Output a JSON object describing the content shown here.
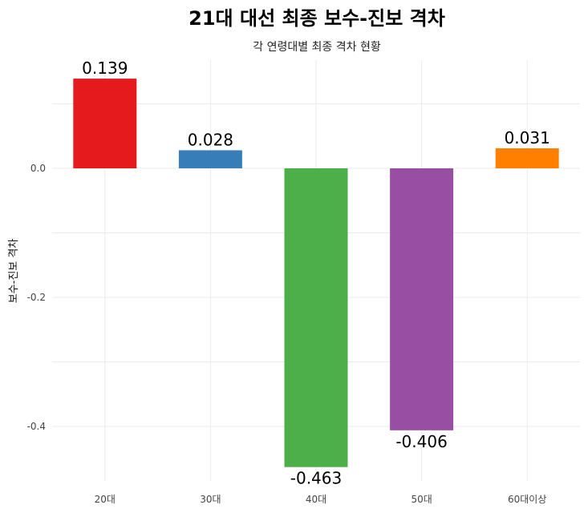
{
  "chart_data": {
    "type": "bar",
    "title": "21대 대선 최종 보수-진보 격차",
    "subtitle": "각 연령대별 최종 격차 현황",
    "xlabel": "",
    "ylabel": "보수-진보 격차",
    "categories": [
      "20대",
      "30대",
      "40대",
      "50대",
      "60대이상"
    ],
    "values": [
      0.139,
      0.028,
      -0.463,
      -0.406,
      0.031
    ],
    "value_labels": [
      "0.139",
      "0.028",
      "-0.463",
      "-0.406",
      "0.031"
    ],
    "colors": [
      "#e41a1c",
      "#377eb8",
      "#4daf4a",
      "#984ea3",
      "#ff7f00"
    ],
    "ylim": [
      -0.48,
      0.16
    ],
    "yticks": [
      0.0,
      -0.2,
      -0.4
    ],
    "ytick_labels": [
      "0.0",
      "-0.2",
      "-0.4"
    ],
    "grid": true,
    "legend": "none"
  }
}
